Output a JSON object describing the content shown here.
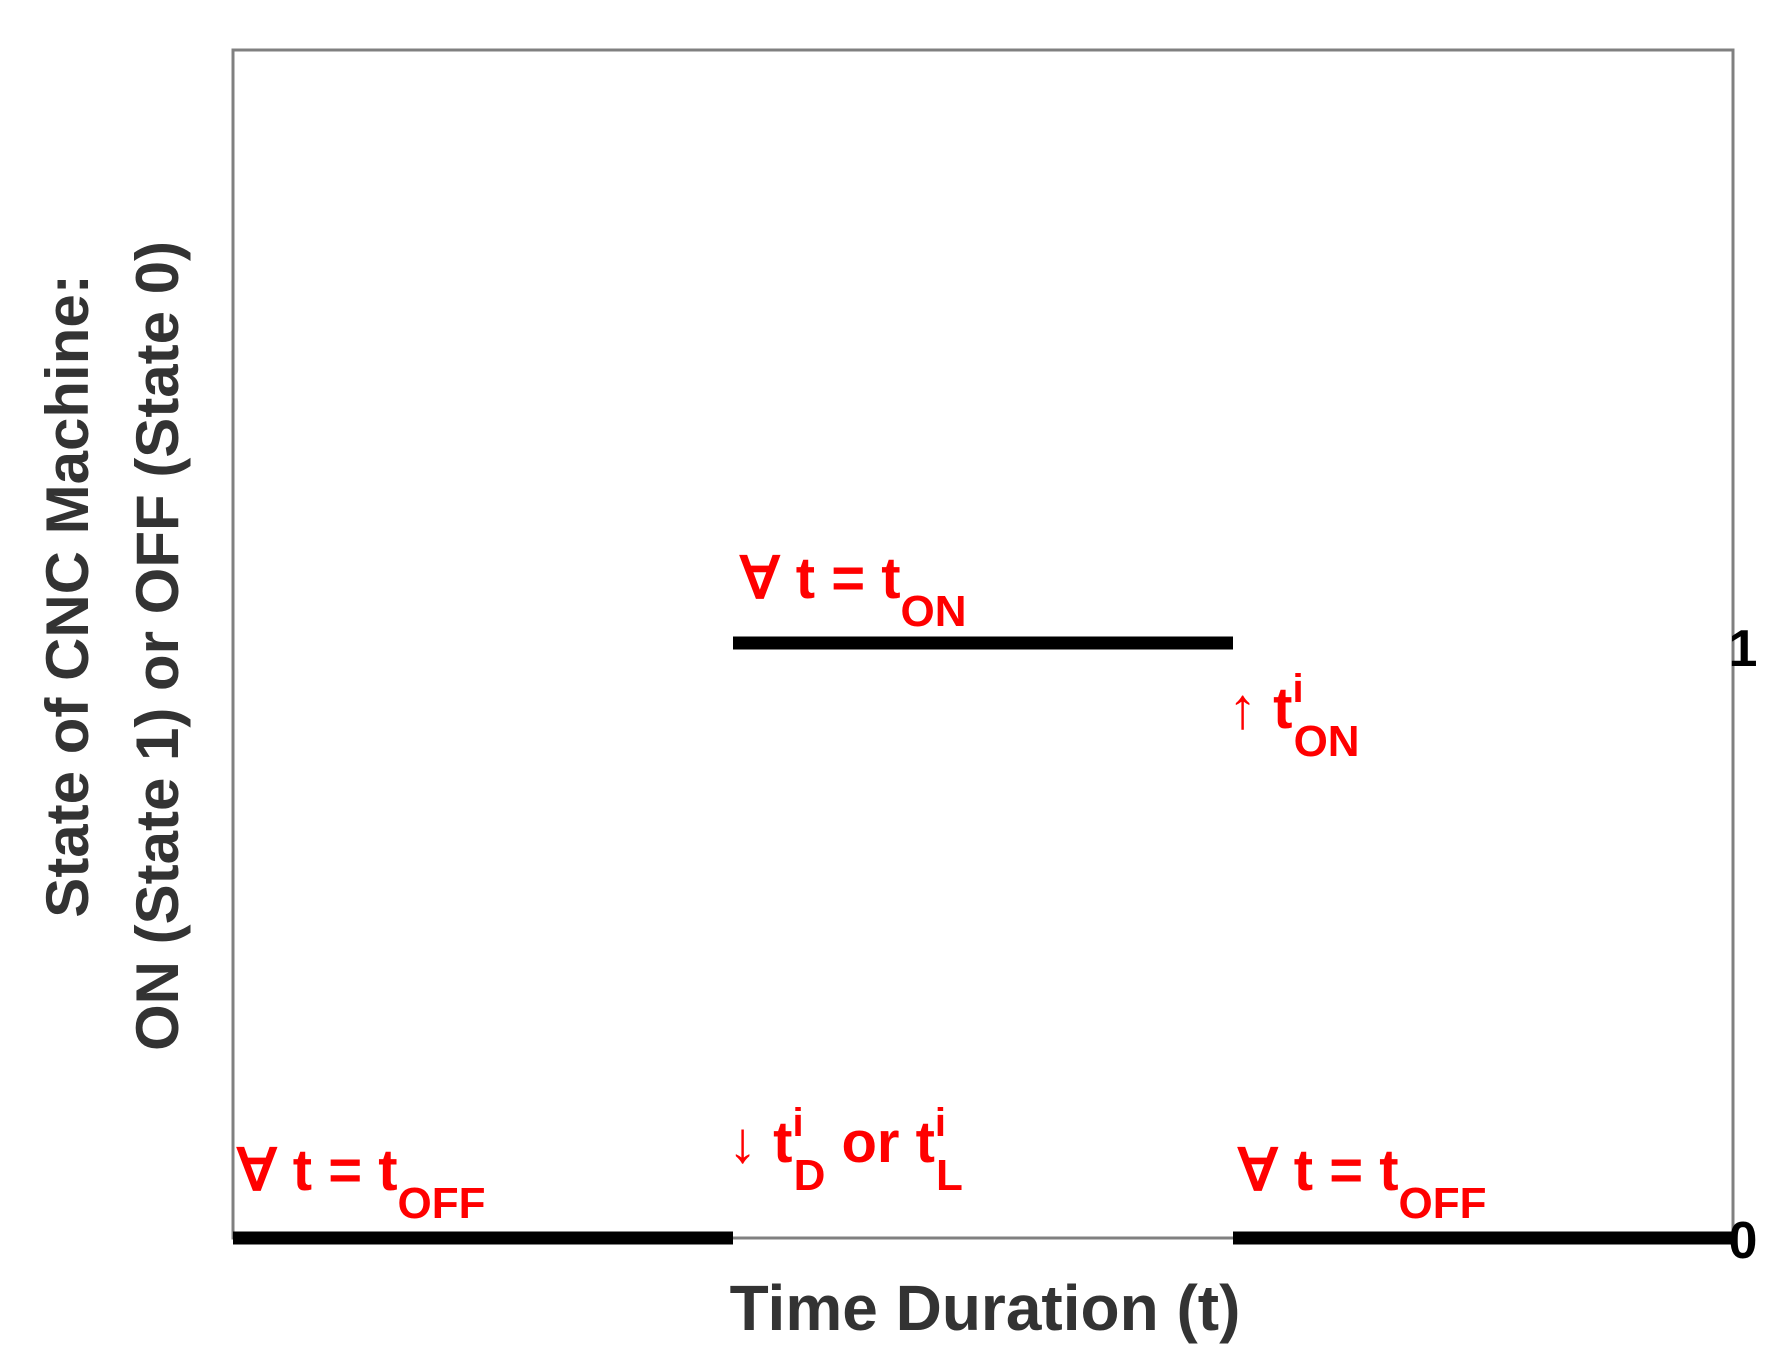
{
  "chart_data": {
    "type": "line",
    "title": "",
    "xlabel": "Time Duration (t)",
    "ylabel_line1": "State of CNC Machine:",
    "ylabel_line2": "ON (State 1) or OFF (State 0)",
    "y_ticks": [
      "0",
      "1"
    ],
    "ylim": [
      0,
      2
    ],
    "xlim": [
      0,
      3
    ],
    "grid": false,
    "segments": [
      {
        "x": [
          0,
          1
        ],
        "y": 0,
        "state": "OFF"
      },
      {
        "x": [
          1,
          2
        ],
        "y": 1,
        "state": "ON"
      },
      {
        "x": [
          2,
          3
        ],
        "y": 0,
        "state": "OFF"
      }
    ],
    "annotations": [
      {
        "prefix": "∀ t = t",
        "sub": "OFF",
        "sup": "",
        "suffix": "",
        "sub2": "",
        "sup2": ""
      },
      {
        "prefix": "∀ t = t",
        "sub": "ON",
        "sup": "",
        "suffix": "",
        "sub2": "",
        "sup2": ""
      },
      {
        "prefix": "↑ t",
        "sub": "ON",
        "sup": "i",
        "suffix": "",
        "sub2": "",
        "sup2": ""
      },
      {
        "prefix": "↓ t",
        "sub": "D",
        "sup": "i",
        "suffix": " or t",
        "sub2": "L",
        "sup2": "i"
      },
      {
        "prefix": "∀ t = t",
        "sub": "OFF",
        "sup": "",
        "suffix": "",
        "sub2": "",
        "sup2": ""
      }
    ],
    "colors": {
      "annotation": "#ff0000",
      "signal": "#000000",
      "frame": "#808080",
      "axis_text": "#333333"
    }
  }
}
